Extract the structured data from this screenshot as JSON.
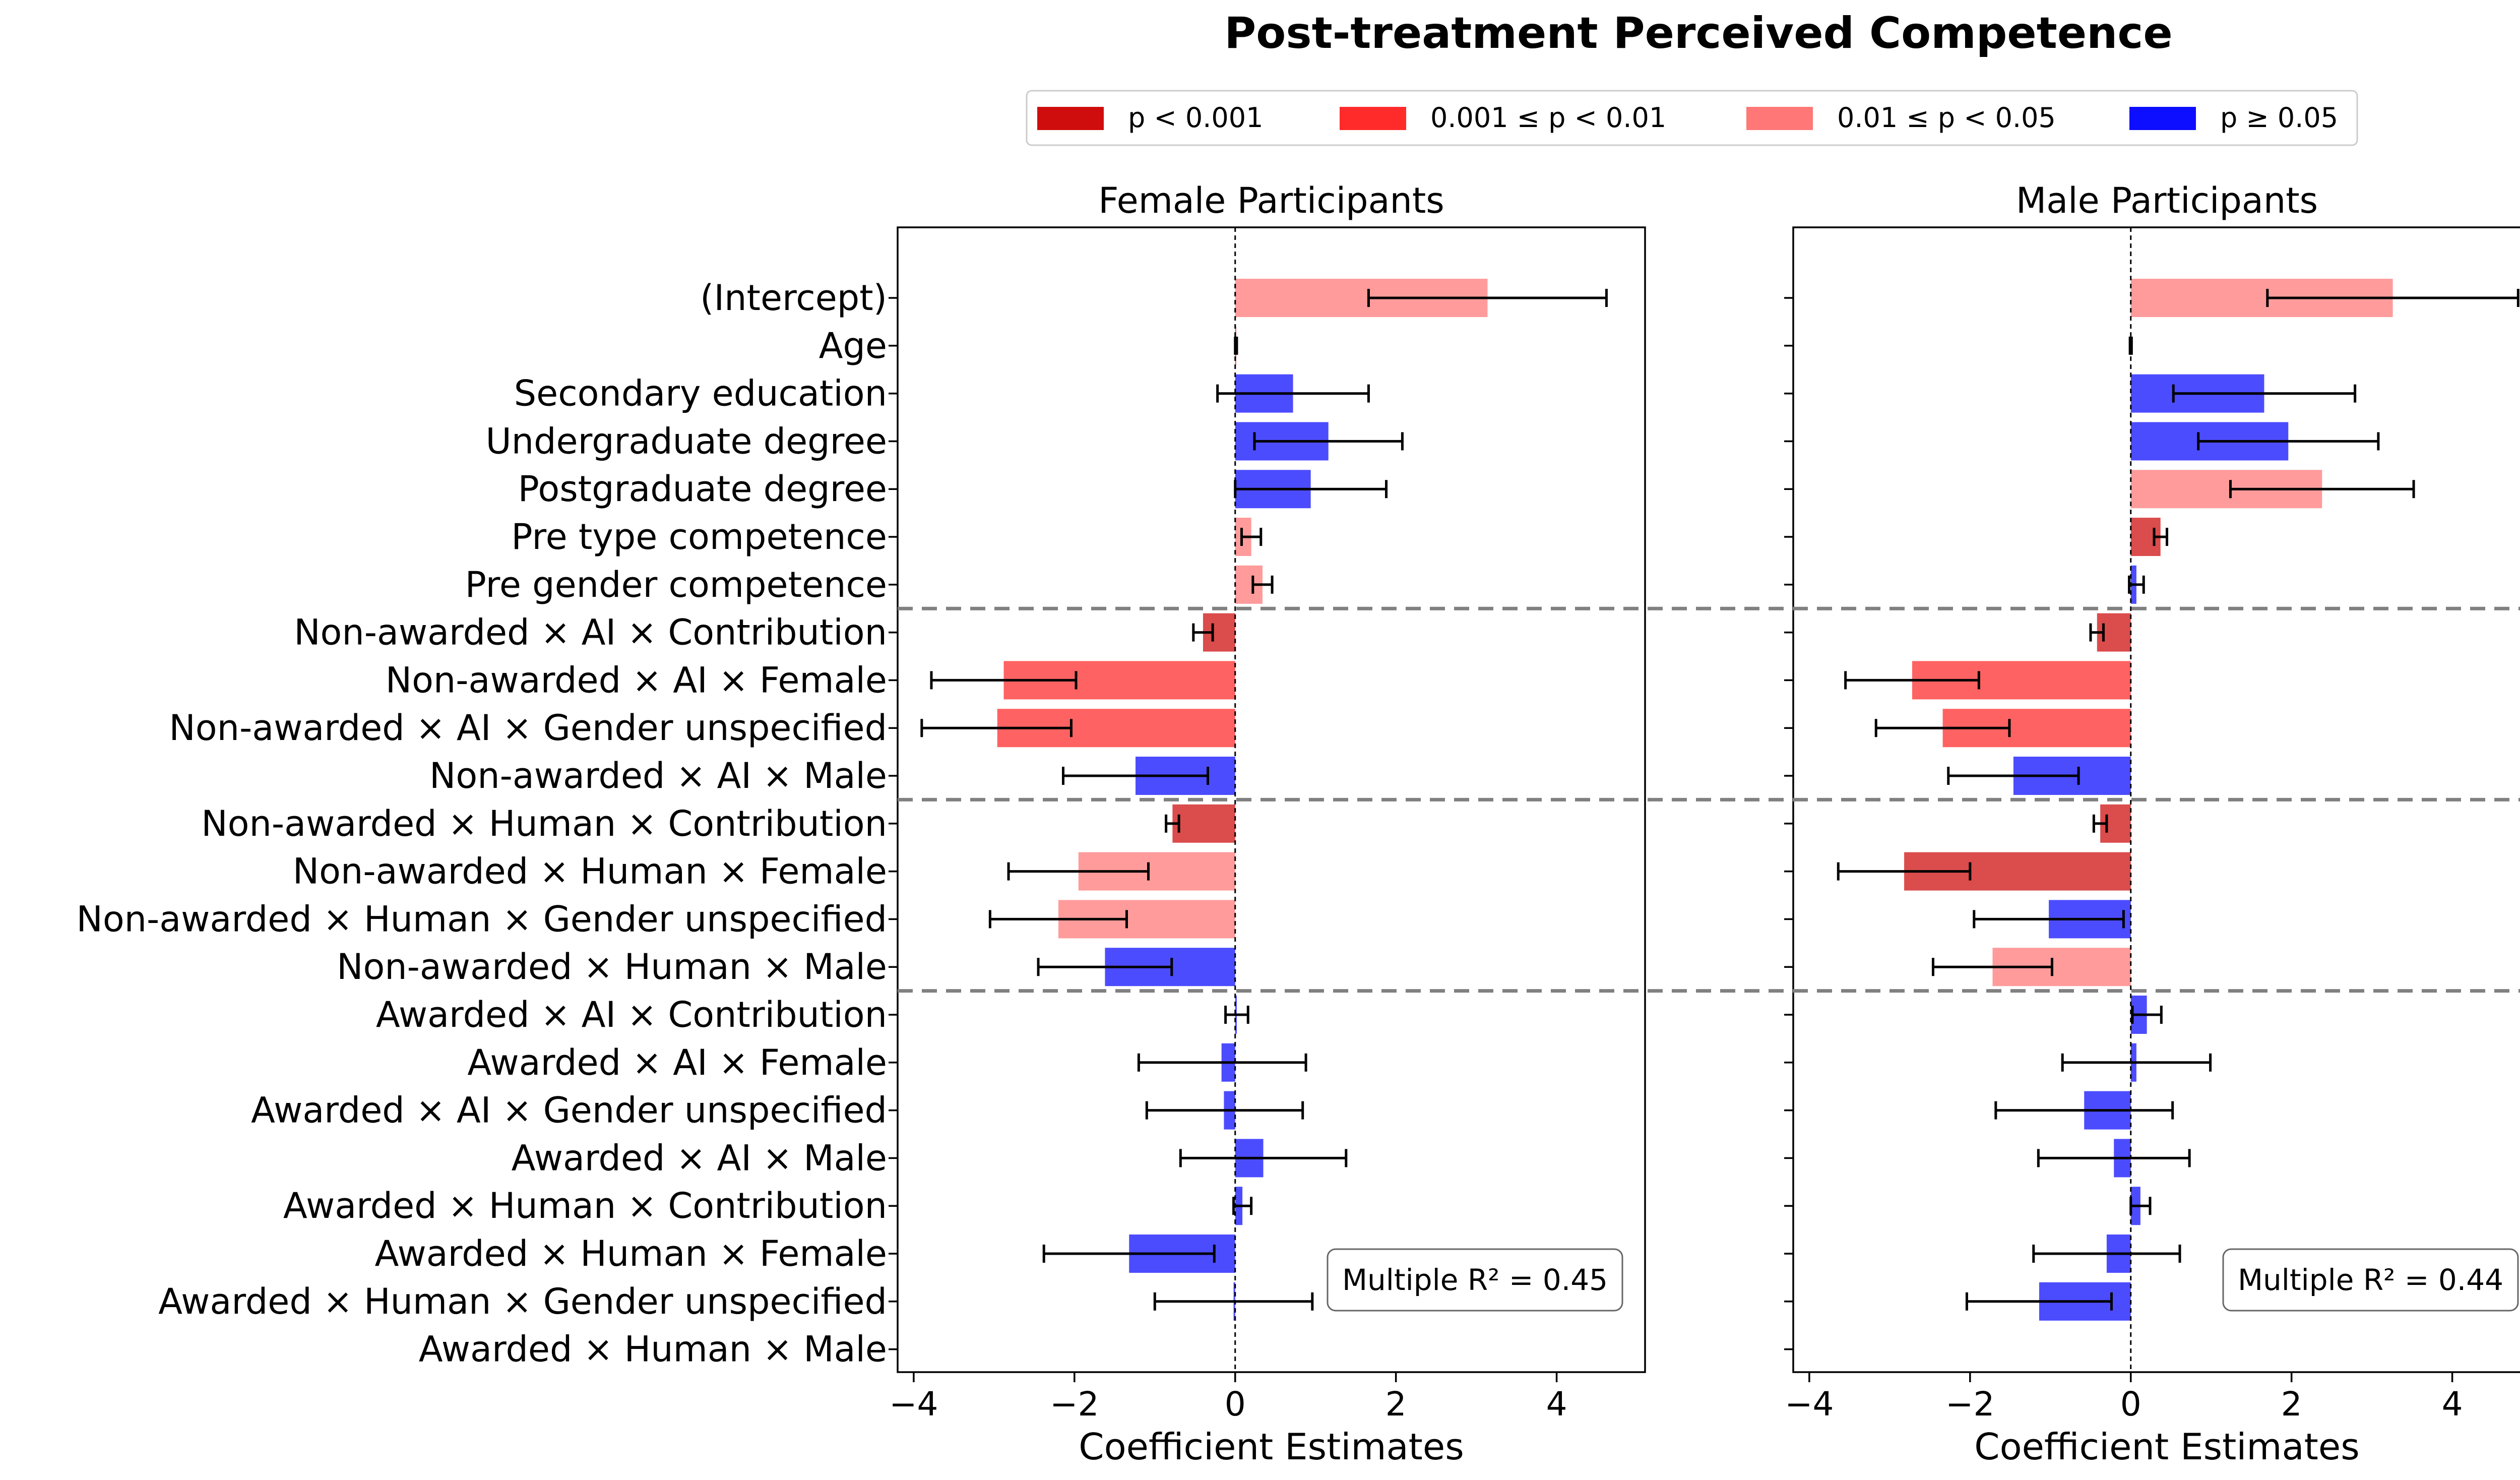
{
  "chart_data": {
    "type": "bar",
    "orientation": "horizontal",
    "title": "Post-treatment Perceived Competence",
    "xlabel": "Coefficient Estimates",
    "xlim": [
      -4.2,
      5.1
    ],
    "xticks": [
      -4,
      -2,
      0,
      2,
      4
    ],
    "xtick_labels": [
      "−4",
      "−2",
      "0",
      "2",
      "4"
    ],
    "grid": false,
    "legend_position": "top-center",
    "legend": [
      {
        "key": "p1",
        "label": "p < 0.001",
        "color": "#cc0000"
      },
      {
        "key": "p2",
        "label": "0.001 ≤ p < 0.01",
        "color": "#ff2020"
      },
      {
        "key": "p3",
        "label": "0.01 ≤ p < 0.05",
        "color": "#ff7070"
      },
      {
        "key": "p4",
        "label": "p ≥ 0.05",
        "color": "#0000ff"
      }
    ],
    "categories": [
      "(Intercept)",
      "Age",
      "Secondary education",
      "Undergraduate degree",
      "Postgraduate degree",
      "Pre type competence",
      "Pre gender competence",
      "Non-awarded × AI × Contribution",
      "Non-awarded × AI × Female",
      "Non-awarded × AI × Gender unspecified",
      "Non-awarded × AI × Male",
      "Non-awarded × Human × Contribution",
      "Non-awarded × Human × Female",
      "Non-awarded × Human × Gender unspecified",
      "Non-awarded × Human × Male",
      "Awarded × AI × Contribution",
      "Awarded × AI × Female",
      "Awarded × AI × Gender unspecified",
      "Awarded × AI × Male",
      "Awarded × Human × Contribution",
      "Awarded × Human × Female",
      "Awarded × Human × Gender unspecified",
      "Awarded × Human × Male"
    ],
    "group_separators_after": [
      6,
      10,
      14
    ],
    "panels": [
      {
        "title": "Female Participants",
        "annotation_prefix": "Multiple ",
        "annotation_r2": "R² = 0.45",
        "values": [
          3.14,
          0.01,
          0.72,
          1.16,
          0.94,
          0.2,
          0.34,
          -0.4,
          -2.88,
          -2.96,
          -1.24,
          -0.78,
          -1.95,
          -2.2,
          -1.62,
          0.02,
          -0.17,
          -0.14,
          0.35,
          0.09,
          -1.32,
          -0.02,
          0
        ],
        "ci_low": [
          1.66,
          0,
          -0.22,
          0.24,
          0.0,
          0.08,
          0.22,
          -0.52,
          -3.78,
          -3.9,
          -2.14,
          -0.86,
          -2.82,
          -3.05,
          -2.45,
          -0.12,
          -1.2,
          -1.1,
          -0.68,
          -0.02,
          -2.38,
          -1.0,
          null
        ],
        "ci_high": [
          4.62,
          0.02,
          1.66,
          2.08,
          1.88,
          0.32,
          0.46,
          -0.28,
          -1.98,
          -2.04,
          -0.34,
          -0.7,
          -1.08,
          -1.35,
          -0.79,
          0.16,
          0.88,
          0.84,
          1.38,
          0.2,
          -0.26,
          0.96,
          null
        ],
        "pcat": [
          "p3",
          "p1",
          "p4",
          "p4",
          "p4",
          "p3",
          "p3",
          "p1",
          "p2",
          "p2",
          "p4",
          "p1",
          "p3",
          "p3",
          "p4",
          "p4",
          "p4",
          "p4",
          "p4",
          "p4",
          "p4",
          "p4",
          "p4"
        ]
      },
      {
        "title": "Male Participants",
        "annotation_prefix": "Multiple ",
        "annotation_r2": "R² = 0.44",
        "values": [
          3.26,
          0.0,
          1.66,
          1.96,
          2.38,
          0.37,
          0.07,
          -0.42,
          -2.72,
          -2.34,
          -1.46,
          -0.38,
          -2.82,
          -1.02,
          -1.72,
          0.2,
          0.07,
          -0.58,
          -0.21,
          0.12,
          -0.3,
          -1.14,
          0
        ],
        "ci_low": [
          1.7,
          -0.01,
          0.53,
          0.84,
          1.24,
          0.29,
          -0.02,
          -0.5,
          -3.55,
          -3.17,
          -2.27,
          -0.46,
          -3.64,
          -1.95,
          -2.46,
          0.02,
          -0.85,
          -1.68,
          -1.15,
          0.0,
          -1.21,
          -2.04,
          null
        ],
        "ci_high": [
          4.82,
          0.01,
          2.79,
          3.08,
          3.52,
          0.45,
          0.16,
          -0.34,
          -1.89,
          -1.51,
          -0.65,
          -0.3,
          -2.0,
          -0.09,
          -0.98,
          0.38,
          0.99,
          0.52,
          0.73,
          0.24,
          0.61,
          -0.24,
          null
        ],
        "pcat": [
          "p3",
          "p1",
          "p4",
          "p4",
          "p3",
          "p1",
          "p4",
          "p1",
          "p2",
          "p2",
          "p4",
          "p1",
          "p1",
          "p4",
          "p3",
          "p4",
          "p4",
          "p4",
          "p4",
          "p4",
          "p4",
          "p4",
          "p4"
        ]
      }
    ]
  }
}
